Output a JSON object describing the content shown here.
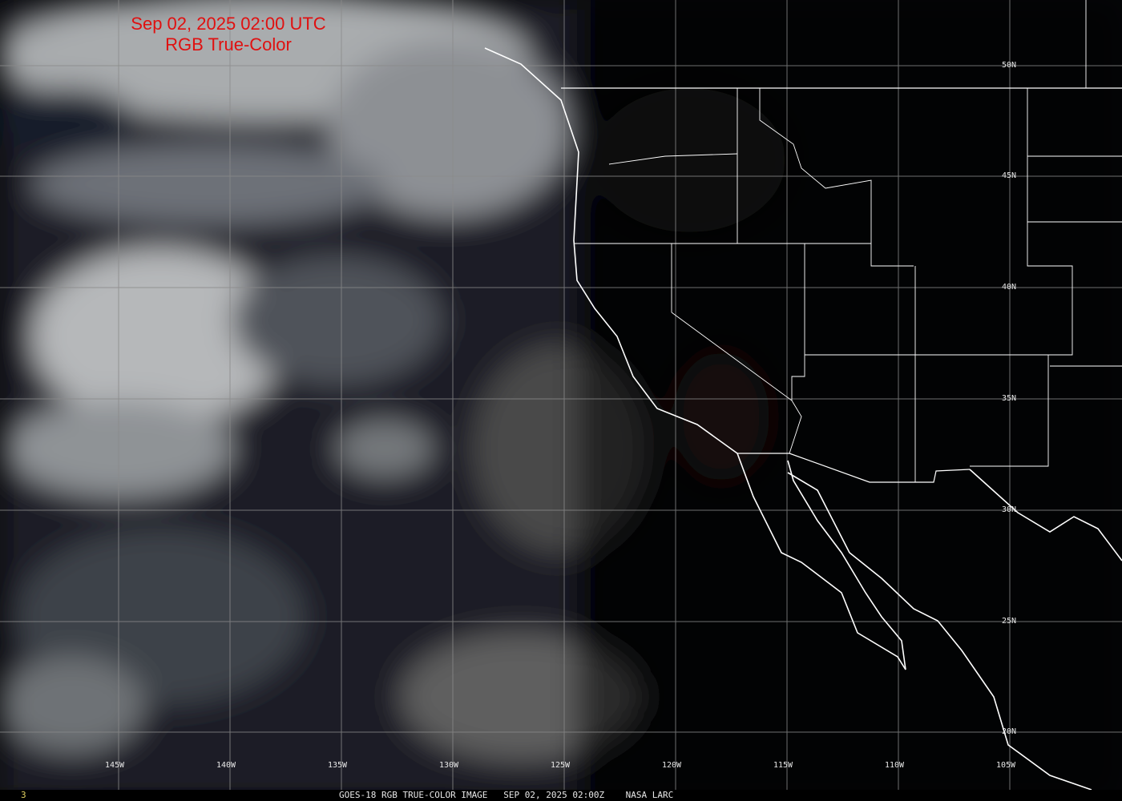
{
  "title": {
    "line1": "Sep 02, 2025 02:00 UTC",
    "line2": "RGB True-Color"
  },
  "latitude_labels": [
    "50N",
    "45N",
    "40N",
    "35N",
    "30N",
    "25N",
    "20N"
  ],
  "longitude_labels": [
    "145W",
    "140W",
    "135W",
    "130W",
    "125W",
    "120W",
    "115W",
    "110W",
    "105W"
  ],
  "footer": {
    "frame_number": "3",
    "caption": "GOES-18 RGB TRUE-COLOR IMAGE   SEP 02, 2025 02:00Z    NASA LARC"
  },
  "colors": {
    "title": "#e01010",
    "grid": "#8a8a8a",
    "coast": "#ffffff",
    "frame_number": "#e0d060"
  }
}
